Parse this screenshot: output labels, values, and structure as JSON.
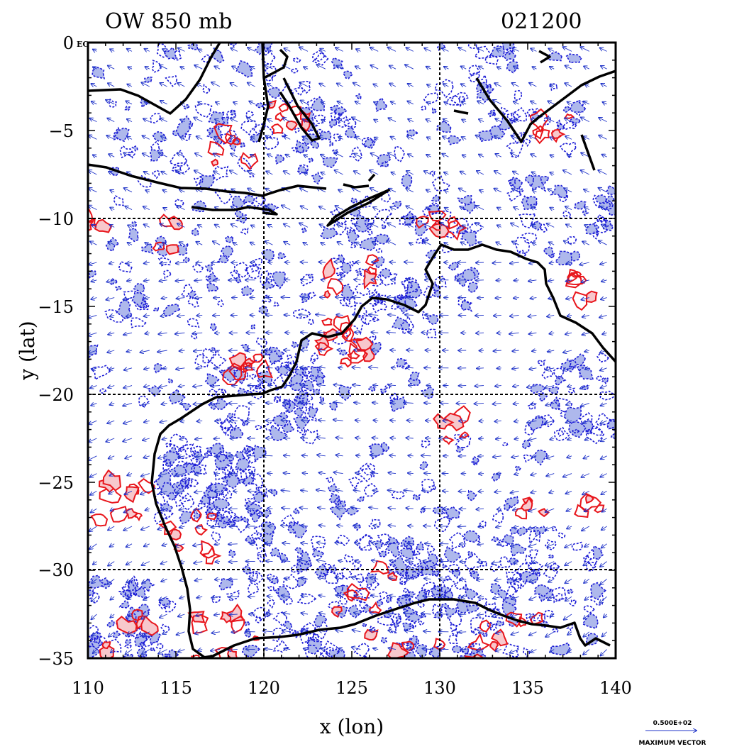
{
  "title_left": "OW 850 mb",
  "title_right": "021200",
  "xlabel": "x (lon)",
  "ylabel": "y (lat)",
  "corner_label": "EC",
  "x_ticks": [
    "110",
    "115",
    "120",
    "125",
    "130",
    "135",
    "140"
  ],
  "y_ticks": [
    "0",
    "−5",
    "−10",
    "−15",
    "−20",
    "−25",
    "−30",
    "−35"
  ],
  "vector_legend": {
    "magnitude": "0.500E+02",
    "label": "MAXIMUM VECTOR"
  },
  "colors": {
    "positive_contour": "#e8151b",
    "positive_fill": "#f7c8cc",
    "negative_contour": "#1c1cd6",
    "negative_fill": "#aeb8ec",
    "coastline": "#000000",
    "vectors": "#1f33c8"
  },
  "map_data": {
    "type": "contour_vector_map",
    "lon_range": [
      110,
      140
    ],
    "lat_range": [
      -35,
      0
    ],
    "gridlines_lon": [
      120,
      130
    ],
    "gridlines_lat": [
      -10,
      -20,
      -30
    ],
    "level": "850 mb",
    "field": "OW"
  }
}
